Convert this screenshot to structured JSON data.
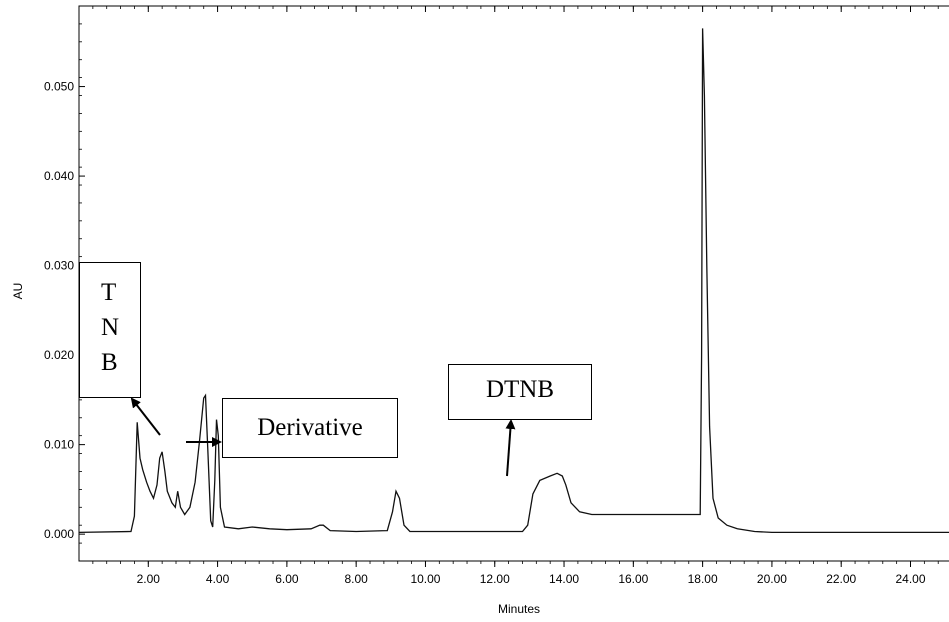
{
  "chart_data": {
    "type": "line",
    "title": "",
    "xlabel": "Minutes",
    "ylabel": "AU",
    "xlim": [
      0.0,
      25.4
    ],
    "ylim": [
      -0.003,
      0.059
    ],
    "x_ticks": [
      "2.00",
      "4.00",
      "6.00",
      "8.00",
      "10.00",
      "12.00",
      "14.00",
      "16.00",
      "18.00",
      "20.00",
      "22.00",
      "24.00"
    ],
    "y_ticks": [
      "0.000",
      "0.010",
      "0.020",
      "0.030",
      "0.040",
      "0.050"
    ],
    "series": [
      {
        "points": [
          [
            0.0,
            0.0002
          ],
          [
            1.5,
            0.0003
          ],
          [
            1.6,
            0.002
          ],
          [
            1.68,
            0.0125
          ],
          [
            1.76,
            0.0085
          ],
          [
            1.84,
            0.0072
          ],
          [
            1.95,
            0.0058
          ],
          [
            2.05,
            0.0048
          ],
          [
            2.15,
            0.004
          ],
          [
            2.25,
            0.0055
          ],
          [
            2.33,
            0.0085
          ],
          [
            2.4,
            0.0092
          ],
          [
            2.48,
            0.007
          ],
          [
            2.55,
            0.0048
          ],
          [
            2.68,
            0.0035
          ],
          [
            2.78,
            0.003
          ],
          [
            2.85,
            0.0048
          ],
          [
            2.93,
            0.003
          ],
          [
            3.05,
            0.0022
          ],
          [
            3.2,
            0.003
          ],
          [
            3.35,
            0.0058
          ],
          [
            3.48,
            0.0105
          ],
          [
            3.6,
            0.0152
          ],
          [
            3.65,
            0.0155
          ],
          [
            3.72,
            0.0092
          ],
          [
            3.8,
            0.0015
          ],
          [
            3.86,
            0.0008
          ],
          [
            3.92,
            0.006
          ],
          [
            3.97,
            0.0128
          ],
          [
            4.02,
            0.011
          ],
          [
            4.08,
            0.003
          ],
          [
            4.2,
            0.0008
          ],
          [
            4.6,
            0.0006
          ],
          [
            5.0,
            0.0008
          ],
          [
            5.5,
            0.0006
          ],
          [
            6.0,
            0.0005
          ],
          [
            6.7,
            0.0006
          ],
          [
            6.95,
            0.001
          ],
          [
            7.05,
            0.001
          ],
          [
            7.25,
            0.0004
          ],
          [
            8.0,
            0.0003
          ],
          [
            8.9,
            0.0004
          ],
          [
            9.05,
            0.0025
          ],
          [
            9.15,
            0.0048
          ],
          [
            9.25,
            0.004
          ],
          [
            9.38,
            0.001
          ],
          [
            9.55,
            0.0003
          ],
          [
            10.5,
            0.0003
          ],
          [
            11.5,
            0.0003
          ],
          [
            12.8,
            0.0003
          ],
          [
            12.95,
            0.001
          ],
          [
            13.1,
            0.0045
          ],
          [
            13.3,
            0.006
          ],
          [
            13.6,
            0.0065
          ],
          [
            13.8,
            0.0068
          ],
          [
            13.95,
            0.0065
          ],
          [
            14.05,
            0.0055
          ],
          [
            14.2,
            0.0035
          ],
          [
            14.45,
            0.0025
          ],
          [
            14.8,
            0.0022
          ],
          [
            15.5,
            0.0022
          ],
          [
            16.5,
            0.0022
          ],
          [
            17.5,
            0.0022
          ],
          [
            17.93,
            0.0022
          ],
          [
            17.97,
            0.02
          ],
          [
            18.0,
            0.0565
          ],
          [
            18.05,
            0.049
          ],
          [
            18.12,
            0.03
          ],
          [
            18.2,
            0.012
          ],
          [
            18.3,
            0.004
          ],
          [
            18.45,
            0.0018
          ],
          [
            18.7,
            0.001
          ],
          [
            19.0,
            0.0006
          ],
          [
            19.5,
            0.0003
          ],
          [
            20.0,
            0.0002
          ],
          [
            21.0,
            0.0002
          ],
          [
            22.0,
            0.0002
          ],
          [
            23.0,
            0.0002
          ],
          [
            24.0,
            0.0002
          ],
          [
            25.4,
            0.0002
          ]
        ]
      }
    ],
    "annotations": [
      {
        "label": [
          "T",
          "N",
          "B"
        ],
        "points_to": [
          1.68,
          0.0125
        ]
      },
      {
        "label": "Derivative",
        "points_to": [
          3.97,
          0.0128
        ]
      },
      {
        "label": "DTNB",
        "points_to": [
          13.6,
          0.0065
        ]
      }
    ],
    "grid": false,
    "legend": "none"
  }
}
